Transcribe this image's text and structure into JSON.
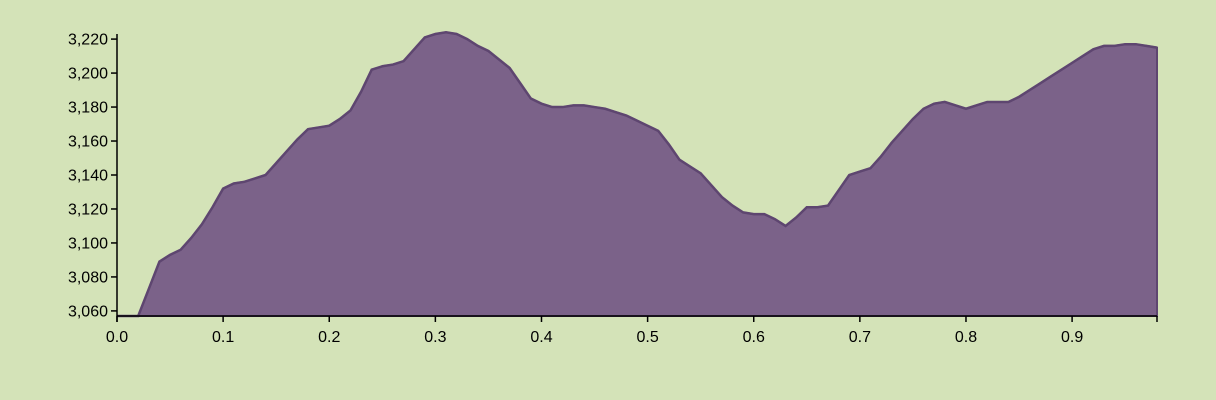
{
  "background_color": "#d4e3b8",
  "chart_data": {
    "type": "area",
    "title": "",
    "xlabel": "",
    "ylabel": "",
    "fill_color": "#7b6289",
    "stroke_color": "#5e4670",
    "xlim": [
      0,
      0.98
    ],
    "ylim": [
      3057,
      3223
    ],
    "x_ticks": [
      "0.0",
      "0.1",
      "0.2",
      "0.3",
      "0.4",
      "0.5",
      "0.6",
      "0.7",
      "0.8",
      "0.9"
    ],
    "x_tick_values": [
      0,
      0.1,
      0.2,
      0.3,
      0.4,
      0.5,
      0.6,
      0.7,
      0.8,
      0.9
    ],
    "y_ticks": [
      "3,060",
      "3,080",
      "3,100",
      "3,120",
      "3,140",
      "3,160",
      "3,180",
      "3,200",
      "3,220"
    ],
    "y_tick_values": [
      3060,
      3080,
      3100,
      3120,
      3140,
      3160,
      3180,
      3200,
      3220
    ],
    "grid": false,
    "x": [
      0,
      0.01,
      0.02,
      0.03,
      0.04,
      0.05,
      0.06,
      0.07,
      0.08,
      0.09,
      0.1,
      0.11,
      0.12,
      0.13,
      0.14,
      0.15,
      0.16,
      0.17,
      0.18,
      0.19,
      0.2,
      0.21,
      0.22,
      0.23,
      0.24,
      0.25,
      0.26,
      0.27,
      0.28,
      0.29,
      0.3,
      0.31,
      0.32,
      0.33,
      0.34,
      0.35,
      0.36,
      0.37,
      0.38,
      0.39,
      0.4,
      0.41,
      0.42,
      0.43,
      0.44,
      0.45,
      0.46,
      0.47,
      0.48,
      0.49,
      0.5,
      0.51,
      0.52,
      0.53,
      0.54,
      0.55,
      0.56,
      0.57,
      0.58,
      0.59,
      0.6,
      0.61,
      0.62,
      0.63,
      0.64,
      0.65,
      0.66,
      0.67,
      0.68,
      0.69,
      0.7,
      0.71,
      0.72,
      0.73,
      0.74,
      0.75,
      0.76,
      0.77,
      0.78,
      0.79,
      0.8,
      0.81,
      0.82,
      0.83,
      0.84,
      0.85,
      0.86,
      0.87,
      0.88,
      0.89,
      0.9,
      0.91,
      0.92,
      0.93,
      0.94,
      0.95,
      0.96,
      0.97,
      0.98
    ],
    "values": [
      3057,
      3057,
      3057,
      3073,
      3089,
      3093,
      3096,
      3103,
      3111,
      3121,
      3132,
      3135,
      3136,
      3138,
      3140,
      3147,
      3154,
      3161,
      3167,
      3168,
      3169,
      3173,
      3178,
      3189,
      3202,
      3204,
      3205,
      3207,
      3214,
      3221,
      3223,
      3224,
      3223,
      3220,
      3216,
      3213,
      3208,
      3203,
      3194,
      3185,
      3182,
      3180,
      3180,
      3181,
      3181,
      3180,
      3179,
      3177,
      3175,
      3172,
      3169,
      3166,
      3158,
      3149,
      3145,
      3141,
      3134,
      3127,
      3122,
      3118,
      3117,
      3117,
      3114,
      3110,
      3115,
      3121,
      3121,
      3122,
      3131,
      3140,
      3142,
      3144,
      3151,
      3159,
      3166,
      3173,
      3179,
      3182,
      3183,
      3181,
      3179,
      3181,
      3183,
      3183,
      3183,
      3186,
      3190,
      3194,
      3198,
      3202,
      3206,
      3210,
      3214,
      3216,
      3216,
      3217,
      3217,
      3216,
      3215
    ]
  }
}
